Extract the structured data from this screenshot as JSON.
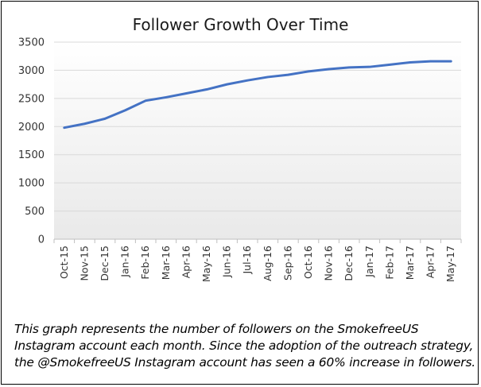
{
  "chart_data": {
    "type": "line",
    "title": "Follower Growth Over Time",
    "xlabel": "",
    "ylabel": "",
    "categories": [
      "Oct-15",
      "Nov-15",
      "Dec-15",
      "Jan-16",
      "Feb-16",
      "Mar-16",
      "Apr-16",
      "May-16",
      "Jun-16",
      "Jul-16",
      "Aug-16",
      "Sep-16",
      "Oct-16",
      "Nov-16",
      "Dec-16",
      "Jan-17",
      "Feb-17",
      "Mar-17",
      "Apr-17",
      "May-17"
    ],
    "series": [
      {
        "name": "",
        "color": "#4472C4",
        "values": [
          1980,
          2050,
          2140,
          2290,
          2460,
          2520,
          2590,
          2660,
          2750,
          2820,
          2880,
          2920,
          2980,
          3020,
          3050,
          3060,
          3100,
          3140,
          3160,
          3160
        ]
      }
    ],
    "ylim": [
      0,
      3500
    ],
    "yticks": [
      0,
      500,
      1000,
      1500,
      2000,
      2500,
      3000,
      3500
    ],
    "grid": true,
    "legend": "none"
  },
  "caption": "This graph represents the number of followers on the SmokefreeUS Instagram account each month. Since the adoption of the outreach strategy, the @SmokefreeUS Instagram account has seen a 60% increase in followers."
}
